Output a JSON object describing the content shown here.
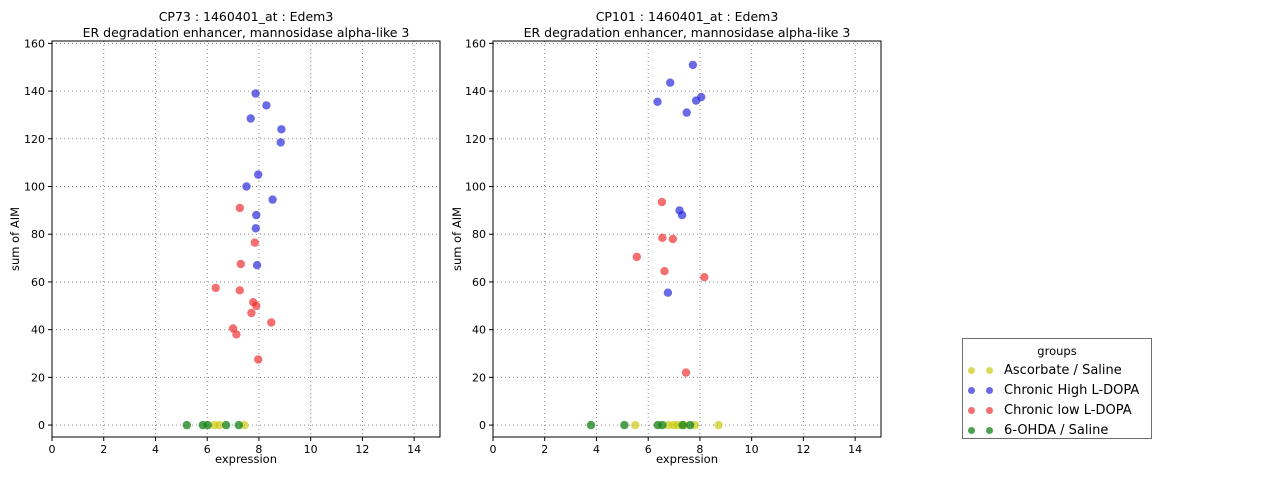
{
  "legend": {
    "title": "groups",
    "entries": [
      {
        "label": "Ascorbate / Saline",
        "color": "#c8c800",
        "opacity": 0.65
      },
      {
        "label": "Chronic High L-DOPA",
        "color": "#2323dc",
        "opacity": 0.68
      },
      {
        "label": "Chronic low L-DOPA",
        "color": "#ee2222",
        "opacity": 0.65
      },
      {
        "label": "6-OHDA / Saline",
        "color": "#148214",
        "opacity": 0.75
      }
    ]
  },
  "chart_data": [
    {
      "type": "scatter",
      "title": "CP73 : 1460401_at : Edem3",
      "subtitle": "ER degradation enhancer, mannosidase alpha-like 3",
      "xlabel": "expression",
      "ylabel": "sum of AIM",
      "xlim": [
        0,
        15
      ],
      "ylim": [
        -5,
        161
      ],
      "xticks": [
        0,
        2,
        4,
        6,
        8,
        10,
        12,
        14
      ],
      "yticks": [
        0,
        20,
        40,
        60,
        80,
        100,
        120,
        140,
        160
      ],
      "grid": true,
      "series": [
        {
          "name": "Ascorbate / Saline",
          "points": [
            [
              6.28,
              0
            ],
            [
              6.47,
              0
            ],
            [
              7.44,
              0
            ]
          ]
        },
        {
          "name": "Chronic High L-DOPA",
          "points": [
            [
              7.87,
              139
            ],
            [
              8.29,
              134
            ],
            [
              7.68,
              128.5
            ],
            [
              8.87,
              124
            ],
            [
              8.84,
              118.5
            ],
            [
              7.97,
              105
            ],
            [
              7.52,
              100
            ],
            [
              8.53,
              94.5
            ],
            [
              7.9,
              88
            ],
            [
              7.88,
              82.5
            ],
            [
              7.93,
              67
            ]
          ]
        },
        {
          "name": "Chronic low L-DOPA",
          "points": [
            [
              7.26,
              91
            ],
            [
              7.84,
              76.5
            ],
            [
              7.3,
              67.5
            ],
            [
              6.33,
              57.5
            ],
            [
              7.26,
              56.5
            ],
            [
              7.78,
              51.5
            ],
            [
              7.9,
              50
            ],
            [
              7.71,
              47
            ],
            [
              8.48,
              43
            ],
            [
              7.0,
              40.5
            ],
            [
              7.13,
              38
            ],
            [
              7.97,
              27.5
            ]
          ]
        },
        {
          "name": "6-OHDA / Saline",
          "points": [
            [
              5.21,
              0
            ],
            [
              5.83,
              0
            ],
            [
              6.02,
              0
            ],
            [
              6.73,
              0
            ],
            [
              7.22,
              0
            ]
          ]
        }
      ]
    },
    {
      "type": "scatter",
      "title": "CP101 : 1460401_at : Edem3",
      "subtitle": "ER degradation enhancer, mannosidase alpha-like 3",
      "xlabel": "expression",
      "ylabel": "sum of AIM",
      "xlim": [
        0,
        15
      ],
      "ylim": [
        -5,
        161
      ],
      "xticks": [
        0,
        2,
        4,
        6,
        8,
        10,
        12,
        14
      ],
      "yticks": [
        0,
        20,
        40,
        60,
        80,
        100,
        120,
        140,
        160
      ],
      "grid": true,
      "series": [
        {
          "name": "Ascorbate / Saline",
          "points": [
            [
              5.5,
              0
            ],
            [
              6.78,
              0
            ],
            [
              6.98,
              0
            ],
            [
              7.13,
              0
            ],
            [
              7.38,
              0
            ],
            [
              7.81,
              0
            ],
            [
              8.72,
              0
            ]
          ]
        },
        {
          "name": "Chronic High L-DOPA",
          "points": [
            [
              7.73,
              151
            ],
            [
              6.85,
              143.5
            ],
            [
              6.36,
              135.5
            ],
            [
              7.85,
              136
            ],
            [
              8.05,
              137.5
            ],
            [
              7.49,
              131
            ],
            [
              7.21,
              90
            ],
            [
              7.31,
              88
            ],
            [
              6.76,
              55.5
            ]
          ]
        },
        {
          "name": "Chronic low L-DOPA",
          "points": [
            [
              6.53,
              93.5
            ],
            [
              6.55,
              78.5
            ],
            [
              6.95,
              78
            ],
            [
              5.56,
              70.5
            ],
            [
              6.63,
              64.5
            ],
            [
              8.17,
              62
            ],
            [
              7.46,
              22
            ]
          ]
        },
        {
          "name": "6-OHDA / Saline",
          "points": [
            [
              3.79,
              0
            ],
            [
              5.08,
              0
            ],
            [
              6.37,
              0
            ],
            [
              6.55,
              0
            ],
            [
              7.33,
              0
            ],
            [
              7.62,
              0
            ]
          ]
        }
      ]
    }
  ]
}
